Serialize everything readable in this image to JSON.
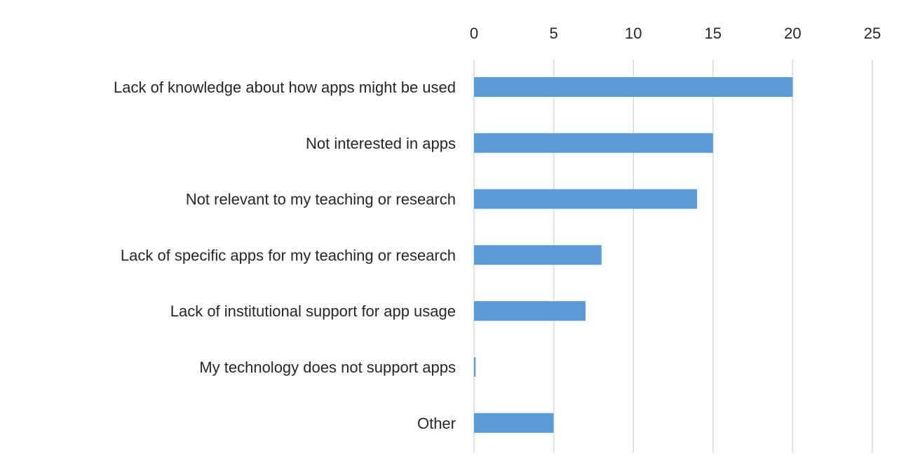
{
  "chart_data": {
    "type": "bar",
    "orientation": "horizontal",
    "categories": [
      "Lack of knowledge about how apps might be used",
      "Not interested in apps",
      "Not relevant to my teaching or research",
      "Lack of specific apps for my teaching or research",
      "Lack of institutional support for app usage",
      "My technology does not support apps",
      "Other"
    ],
    "values": [
      20,
      15,
      14,
      8,
      7,
      0.1,
      5
    ],
    "xlim": [
      0,
      25
    ],
    "xticks": [
      "0",
      "5",
      "10",
      "15",
      "20",
      "25"
    ],
    "xaxis_position": "top",
    "grid": true,
    "legend": "none",
    "title": "",
    "xlabel": "",
    "ylabel": "",
    "bar_color": "#5b9bd5"
  }
}
